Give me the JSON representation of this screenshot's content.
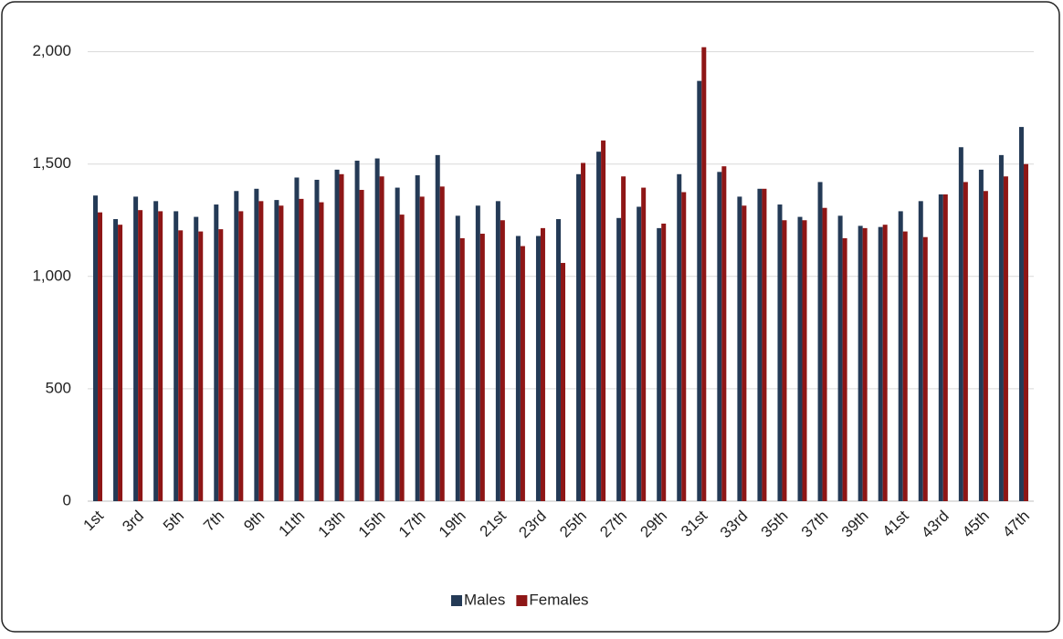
{
  "chart_data": {
    "type": "bar",
    "categories": [
      "1st",
      null,
      "3rd",
      null,
      "5th",
      null,
      "7th",
      null,
      "9th",
      null,
      "11th",
      null,
      "13th",
      null,
      "15th",
      null,
      "17th",
      null,
      "19th",
      null,
      "21st",
      null,
      "23rd",
      null,
      "25th",
      null,
      "27th",
      null,
      "29th",
      null,
      "31st",
      null,
      "33rd",
      null,
      "35th",
      null,
      "37th",
      null,
      "39th",
      null,
      "41st",
      null,
      "43rd",
      null,
      "45th",
      null,
      "47th"
    ],
    "series": [
      {
        "name": "Males",
        "color": "#243a56",
        "values": [
          1360,
          1255,
          1355,
          1335,
          1290,
          1265,
          1320,
          1380,
          1390,
          1340,
          1440,
          1430,
          1475,
          1515,
          1525,
          1395,
          1450,
          1540,
          1270,
          1315,
          1335,
          1180,
          1180,
          1255,
          1455,
          1555,
          1260,
          1310,
          1215,
          1455,
          1870,
          1465,
          1355,
          1390,
          1320,
          1265,
          1420,
          1270,
          1225,
          1220,
          1290,
          1335,
          1365,
          1575,
          1475,
          1540,
          1665
        ]
      },
      {
        "name": "Females",
        "color": "#8e1616",
        "values": [
          1285,
          1230,
          1295,
          1290,
          1205,
          1200,
          1210,
          1290,
          1335,
          1315,
          1345,
          1330,
          1455,
          1385,
          1445,
          1275,
          1355,
          1400,
          1170,
          1190,
          1250,
          1135,
          1215,
          1060,
          1505,
          1605,
          1445,
          1395,
          1235,
          1375,
          2020,
          1490,
          1315,
          1390,
          1250,
          1250,
          1305,
          1170,
          1215,
          1230,
          1200,
          1175,
          1365,
          1420,
          1380,
          1445,
          1500
        ]
      }
    ],
    "ylim": [
      0,
      2100
    ],
    "yticks": [
      0,
      500,
      {
        "value": 1000,
        "label": "1,000"
      },
      {
        "value": 1500,
        "label": "1,500"
      },
      {
        "value": 2000,
        "label": "2,000"
      }
    ],
    "grid": true,
    "legend": "bottom"
  }
}
